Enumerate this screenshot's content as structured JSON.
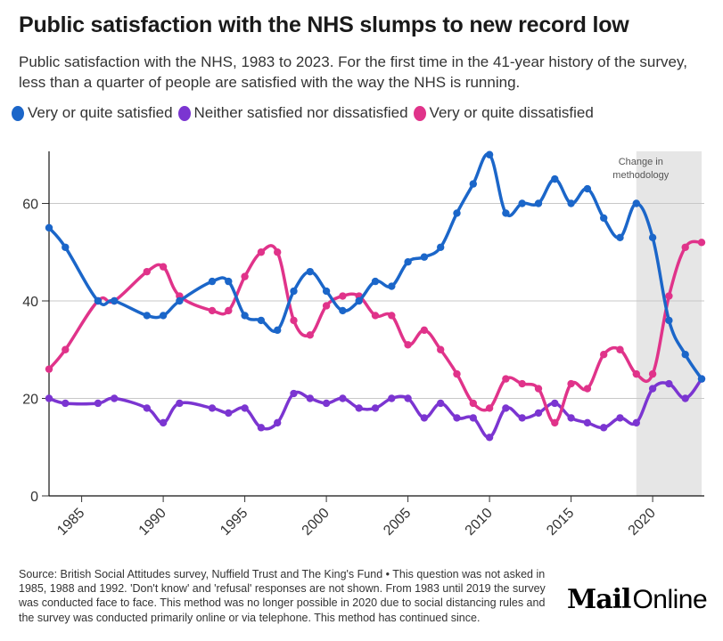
{
  "title": "Public satisfaction with the NHS slumps to new record low",
  "subtitle": "Public satisfaction with the NHS, 1983 to 2023. For the first time in the 41-year history of the survey, less than a quarter of people are satisfied with the way the NHS is running.",
  "legend": [
    {
      "label": "Very or quite satisfied",
      "color": "#1b66c9"
    },
    {
      "label": "Neither satisfied nor dissatisfied",
      "color": "#7b35d1"
    },
    {
      "label": "Very or quite dissatisfied",
      "color": "#e0338a"
    }
  ],
  "footer": "Source: British Social Attitudes survey, Nuffield Trust and The King's Fund • This question was not asked in 1985, 1988 and 1992. 'Don't know' and 'refusal' responses are not shown. From 1983 until 2019 the survey was conducted face to face. This method was no longer possible in 2020 due to social distancing rules and the survey was conducted primarily online or via telephone. This method has continued since.",
  "logo": {
    "part1": "Mail",
    "part2": "Online"
  },
  "chart_data": {
    "type": "line",
    "title": "Public satisfaction with the NHS slumps to new record low",
    "xlabel": "",
    "ylabel": "",
    "xlim": [
      1983,
      2023
    ],
    "ylim": [
      0,
      71
    ],
    "x_ticks": [
      1985,
      1990,
      1995,
      2000,
      2005,
      2010,
      2015,
      2020
    ],
    "y_ticks": [
      0,
      20,
      40,
      60
    ],
    "grid": "horizontal",
    "legend_position": "top",
    "x": [
      1983,
      1984,
      1986,
      1987,
      1989,
      1990,
      1991,
      1993,
      1994,
      1995,
      1996,
      1997,
      1998,
      1999,
      2000,
      2001,
      2002,
      2003,
      2004,
      2005,
      2006,
      2007,
      2008,
      2009,
      2010,
      2011,
      2012,
      2013,
      2014,
      2015,
      2016,
      2017,
      2018,
      2019,
      2020,
      2021,
      2022,
      2023
    ],
    "series": [
      {
        "name": "Very or quite satisfied",
        "color": "#1b66c9",
        "values": [
          55,
          51,
          40,
          40,
          37,
          37,
          40,
          44,
          44,
          37,
          36,
          34,
          42,
          46,
          42,
          38,
          40,
          44,
          43,
          48,
          49,
          51,
          58,
          64,
          70,
          58,
          60,
          60,
          65,
          60,
          63,
          57,
          53,
          60,
          53,
          36,
          29,
          24
        ]
      },
      {
        "name": "Neither satisfied nor dissatisfied",
        "color": "#7b35d1",
        "values": [
          20,
          19,
          19,
          20,
          18,
          15,
          19,
          18,
          17,
          18,
          14,
          15,
          21,
          20,
          19,
          20,
          18,
          18,
          20,
          20,
          16,
          19,
          16,
          16,
          12,
          18,
          16,
          17,
          19,
          16,
          15,
          14,
          16,
          15,
          22,
          23,
          20,
          24
        ]
      },
      {
        "name": "Very or quite dissatisfied",
        "color": "#e0338a",
        "values": [
          26,
          30,
          40,
          40,
          46,
          47,
          41,
          38,
          38,
          45,
          50,
          50,
          36,
          33,
          39,
          41,
          41,
          37,
          37,
          31,
          34,
          30,
          25,
          19,
          18,
          24,
          23,
          22,
          15,
          23,
          22,
          29,
          30,
          25,
          25,
          41,
          51,
          52
        ]
      }
    ],
    "annotations": [
      {
        "label": "Change in methodology",
        "x_range": [
          2019,
          2023
        ]
      }
    ]
  }
}
